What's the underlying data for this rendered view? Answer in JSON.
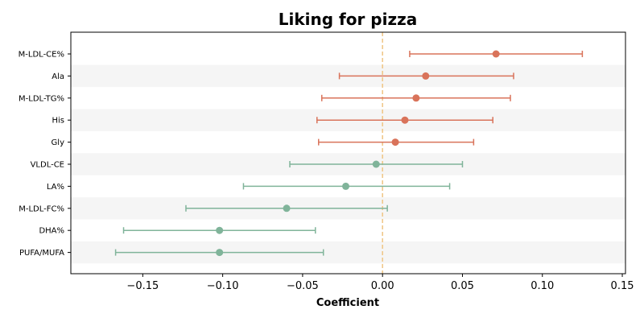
{
  "chart_data": {
    "type": "scatter",
    "subtype": "forest-plot",
    "title": "Liking for pizza",
    "xlabel": "Coefficient",
    "ylabel": "",
    "xlim": [
      -0.195,
      0.152
    ],
    "xticks": [
      -0.15,
      -0.1,
      -0.05,
      0.0,
      0.05,
      0.1,
      0.15
    ],
    "xtick_labels": [
      "−0.15",
      "−0.10",
      "−0.05",
      "0.00",
      "0.05",
      "0.10",
      "0.15"
    ],
    "reference_line": 0.0,
    "grid": false,
    "legend": "none",
    "colors": {
      "positive": "#d9735a",
      "negative": "#80b49a",
      "reference": "#f0c88a",
      "band": "#f5f5f5"
    },
    "points": [
      {
        "label": "M-LDL-CE%",
        "estimate": 0.071,
        "low": 0.017,
        "high": 0.125
      },
      {
        "label": "Ala",
        "estimate": 0.027,
        "low": -0.027,
        "high": 0.082
      },
      {
        "label": "M-LDL-TG%",
        "estimate": 0.021,
        "low": -0.038,
        "high": 0.08
      },
      {
        "label": "His",
        "estimate": 0.014,
        "low": -0.041,
        "high": 0.069
      },
      {
        "label": "Gly",
        "estimate": 0.008,
        "low": -0.04,
        "high": 0.057
      },
      {
        "label": "VLDL-CE",
        "estimate": -0.004,
        "low": -0.058,
        "high": 0.05
      },
      {
        "label": "LA%",
        "estimate": -0.023,
        "low": -0.087,
        "high": 0.042
      },
      {
        "label": "M-LDL-FC%",
        "estimate": -0.06,
        "low": -0.123,
        "high": 0.003
      },
      {
        "label": "DHA%",
        "estimate": -0.102,
        "low": -0.162,
        "high": -0.042
      },
      {
        "label": "PUFA/MUFA",
        "estimate": -0.102,
        "low": -0.167,
        "high": -0.037
      }
    ]
  }
}
